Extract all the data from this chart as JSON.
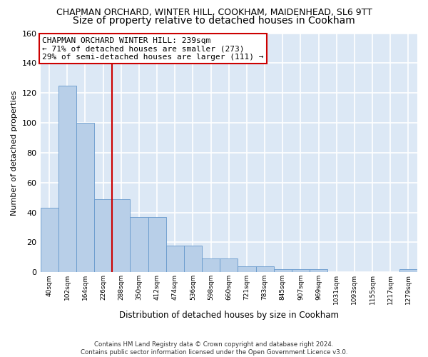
{
  "title1": "CHAPMAN ORCHARD, WINTER HILL, COOKHAM, MAIDENHEAD, SL6 9TT",
  "title2": "Size of property relative to detached houses in Cookham",
  "xlabel": "Distribution of detached houses by size in Cookham",
  "ylabel": "Number of detached properties",
  "bar_labels": [
    "40sqm",
    "102sqm",
    "164sqm",
    "226sqm",
    "288sqm",
    "350sqm",
    "412sqm",
    "474sqm",
    "536sqm",
    "598sqm",
    "660sqm",
    "721sqm",
    "783sqm",
    "845sqm",
    "907sqm",
    "969sqm",
    "1031sqm",
    "1093sqm",
    "1155sqm",
    "1217sqm",
    "1279sqm"
  ],
  "bar_values": [
    43,
    125,
    100,
    49,
    49,
    37,
    37,
    18,
    18,
    9,
    9,
    4,
    4,
    2,
    2,
    2,
    0,
    0,
    0,
    0,
    2
  ],
  "bar_color": "#b8cfe8",
  "bar_edge_color": "#6699cc",
  "vline_x": 3.5,
  "vline_color": "#cc0000",
  "ylim": [
    0,
    160
  ],
  "yticks": [
    0,
    20,
    40,
    60,
    80,
    100,
    120,
    140,
    160
  ],
  "annotation_text": "CHAPMAN ORCHARD WINTER HILL: 239sqm\n← 71% of detached houses are smaller (273)\n29% of semi-detached houses are larger (111) →",
  "annotation_box_color": "#ffffff",
  "annotation_box_edge": "#cc0000",
  "footnote": "Contains HM Land Registry data © Crown copyright and database right 2024.\nContains public sector information licensed under the Open Government Licence v3.0.",
  "fig_bg_color": "#ffffff",
  "plot_bg_color": "#dce8f5",
  "grid_color": "#ffffff",
  "title1_fontsize": 9,
  "title2_fontsize": 10,
  "annotation_fontsize": 8
}
